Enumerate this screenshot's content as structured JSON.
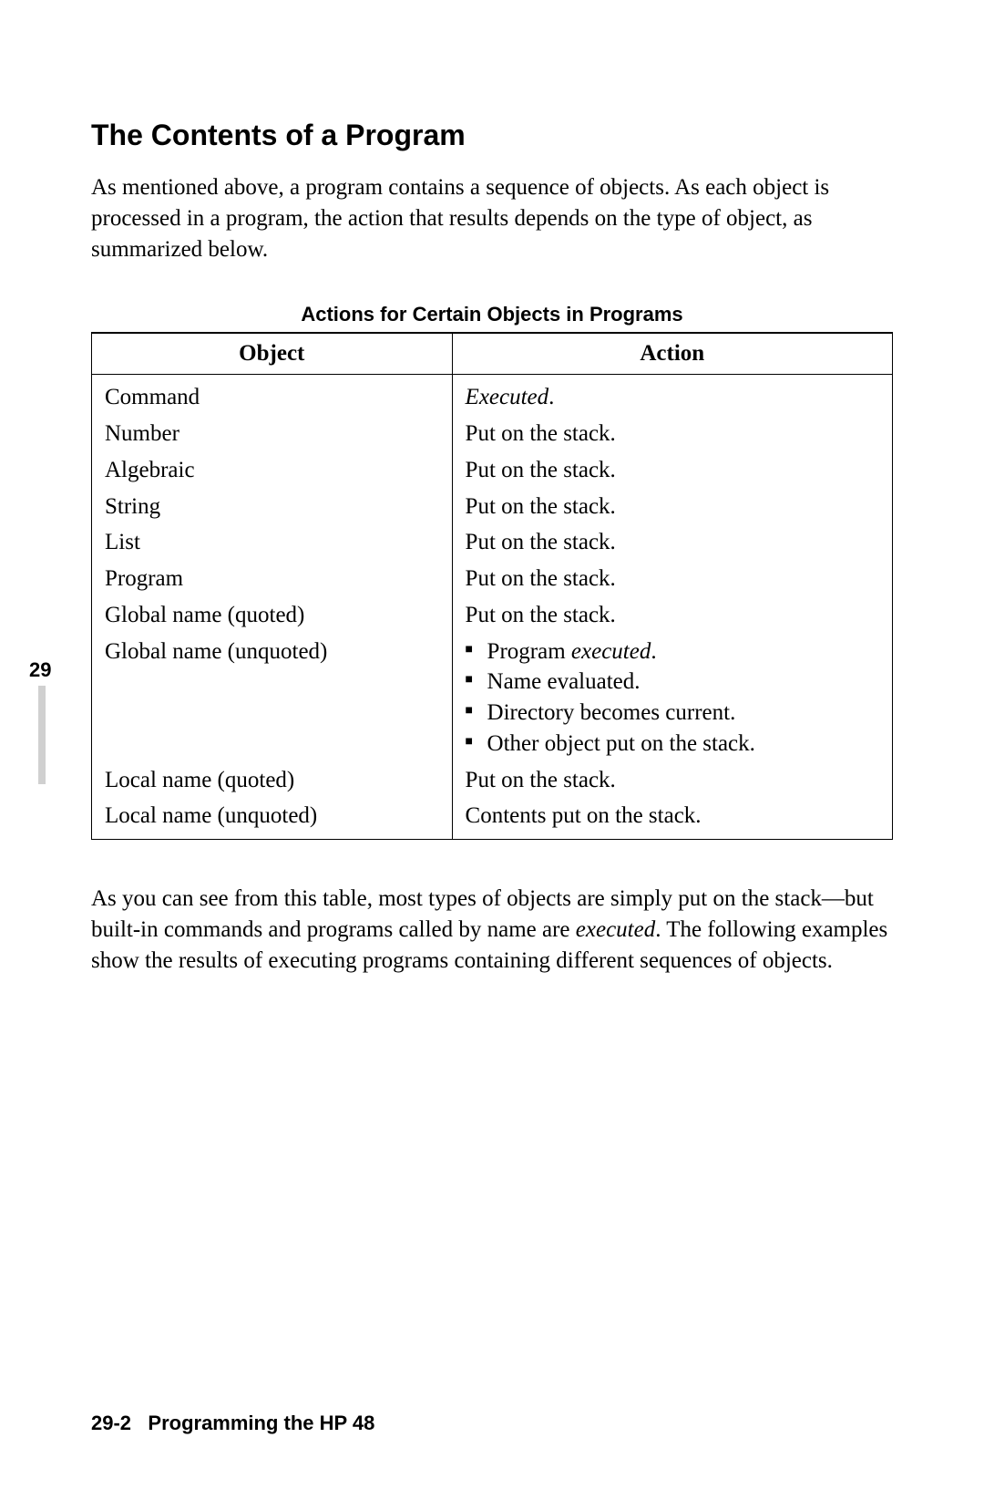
{
  "sectionNumber": "29",
  "heading": "The Contents of a Program",
  "introText": "As mentioned above, a program contains a sequence of objects. As each object is processed in a program, the action that results depends on the type of object, as summarized below.",
  "table": {
    "title": "Actions for Certain Objects in Programs",
    "columns": [
      "Object",
      "Action"
    ],
    "rows": [
      {
        "object": "Command",
        "action": {
          "type": "italic-period",
          "text": "Executed"
        }
      },
      {
        "object": "Number",
        "action": {
          "type": "plain",
          "text": "Put on the stack."
        }
      },
      {
        "object": "Algebraic",
        "action": {
          "type": "plain",
          "text": "Put on the stack."
        }
      },
      {
        "object": "String",
        "action": {
          "type": "plain",
          "text": "Put on the stack."
        }
      },
      {
        "object": "List",
        "action": {
          "type": "plain",
          "text": "Put on the stack."
        }
      },
      {
        "object": "Program",
        "action": {
          "type": "plain",
          "text": "Put on the stack."
        }
      },
      {
        "object": "Global name (quoted)",
        "action": {
          "type": "plain",
          "text": "Put on the stack."
        }
      },
      {
        "object": "Global name (unquoted)",
        "action": {
          "type": "bullets",
          "items": [
            {
              "prefix": "Program ",
              "italic": "executed",
              "suffix": "."
            },
            {
              "prefix": "Name evaluated.",
              "italic": "",
              "suffix": ""
            },
            {
              "prefix": "Directory becomes current.",
              "italic": "",
              "suffix": ""
            },
            {
              "prefix": "Other object put on the stack.",
              "italic": "",
              "suffix": ""
            }
          ]
        }
      },
      {
        "object": "Local name (quoted)",
        "action": {
          "type": "plain",
          "text": "Put on the stack."
        }
      },
      {
        "object": "Local name (unquoted)",
        "action": {
          "type": "plain",
          "text": "Contents put on the stack."
        }
      }
    ]
  },
  "outro": {
    "part1": "As you can see from this table, most types of objects are simply put on the stack—but built-in commands and programs called by name are ",
    "italic": "executed",
    "part2": ". The following examples show the results of executing programs containing different sequences of objects."
  },
  "footer": {
    "pageRef": "29-2",
    "title": "Programming the HP 48"
  }
}
